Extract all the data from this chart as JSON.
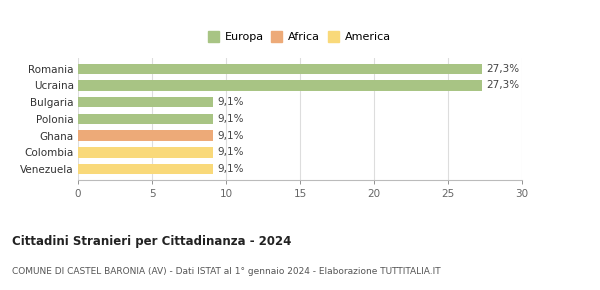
{
  "categories": [
    "Venezuela",
    "Colombia",
    "Ghana",
    "Polonia",
    "Bulgaria",
    "Ucraina",
    "Romania"
  ],
  "values": [
    9.1,
    9.1,
    9.1,
    9.1,
    9.1,
    27.3,
    27.3
  ],
  "colors": [
    "#F9D97A",
    "#F9D97A",
    "#EDAA78",
    "#A8C484",
    "#A8C484",
    "#A8C484",
    "#A8C484"
  ],
  "labels": [
    "9,1%",
    "9,1%",
    "9,1%",
    "9,1%",
    "9,1%",
    "27,3%",
    "27,3%"
  ],
  "legend_items": [
    {
      "label": "Europa",
      "color": "#A8C484"
    },
    {
      "label": "Africa",
      "color": "#EDAA78"
    },
    {
      "label": "America",
      "color": "#F9D97A"
    }
  ],
  "xlim": [
    0,
    30
  ],
  "xticks": [
    0,
    5,
    10,
    15,
    20,
    25,
    30
  ],
  "title": "Cittadini Stranieri per Cittadinanza - 2024",
  "subtitle": "COMUNE DI CASTEL BARONIA (AV) - Dati ISTAT al 1° gennaio 2024 - Elaborazione TUTTITALIA.IT",
  "bg_color": "#ffffff",
  "bar_height": 0.62
}
